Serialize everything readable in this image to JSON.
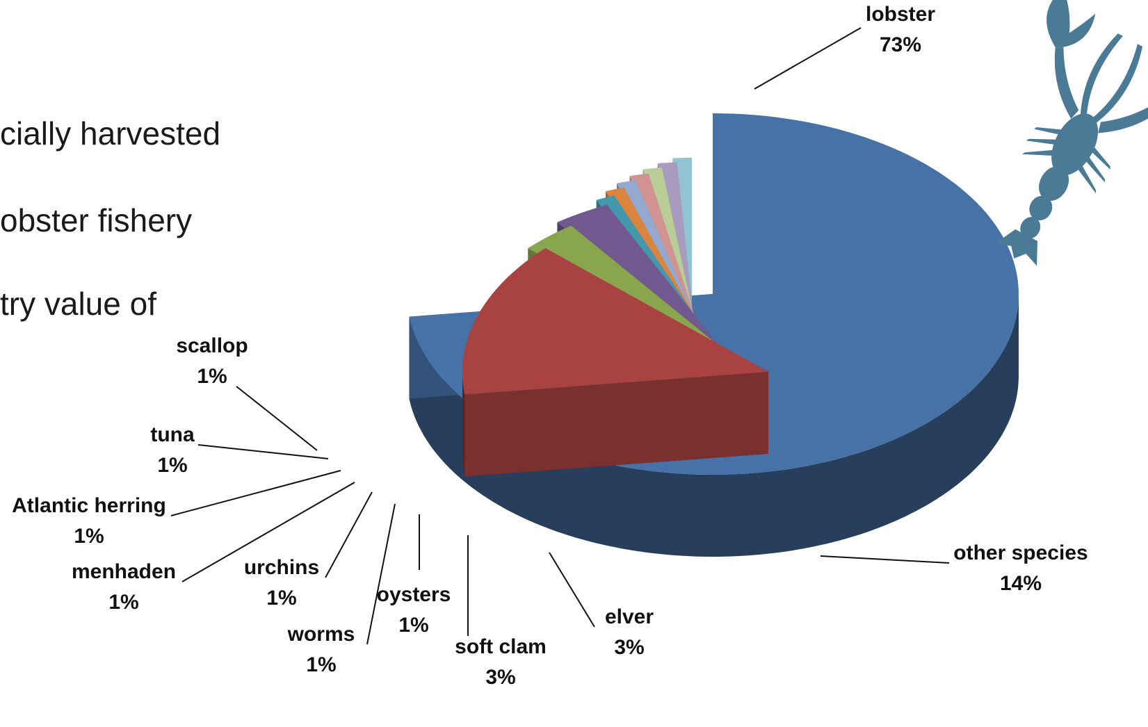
{
  "background_text": {
    "line1": "cially harvested",
    "line2": "obster fishery",
    "line3": "try value of"
  },
  "icon": "lobster-icon",
  "chart_data": {
    "type": "pie",
    "style": "3d-exploded",
    "title": "",
    "slices": [
      {
        "key": "lobster",
        "label": "lobster",
        "value": 73,
        "pct_label": "73%",
        "color": "#4672A8"
      },
      {
        "key": "other",
        "label": "other species",
        "value": 14,
        "pct_label": "14%",
        "color": "#A84341"
      },
      {
        "key": "elver",
        "label": "elver",
        "value": 3,
        "pct_label": "3%",
        "color": "#89A54E"
      },
      {
        "key": "softclam",
        "label": "soft clam",
        "value": 3,
        "pct_label": "3%",
        "color": "#71588F"
      },
      {
        "key": "oysters",
        "label": "oysters",
        "value": 1,
        "pct_label": "1%",
        "color": "#4198AF"
      },
      {
        "key": "worms",
        "label": "worms",
        "value": 1,
        "pct_label": "1%",
        "color": "#DB843D"
      },
      {
        "key": "urchins",
        "label": "urchins",
        "value": 1,
        "pct_label": "1%",
        "color": "#93A9CF"
      },
      {
        "key": "menhaden",
        "label": "menhaden",
        "value": 1,
        "pct_label": "1%",
        "color": "#D19392"
      },
      {
        "key": "herring",
        "label": "Atlantic herring",
        "value": 1,
        "pct_label": "1%",
        "color": "#B9CD96"
      },
      {
        "key": "tuna",
        "label": "tuna",
        "value": 1,
        "pct_label": "1%",
        "color": "#A99BBD"
      },
      {
        "key": "scallop",
        "label": "scallop",
        "value": 1,
        "pct_label": "1%",
        "color": "#92C3D3"
      }
    ]
  }
}
